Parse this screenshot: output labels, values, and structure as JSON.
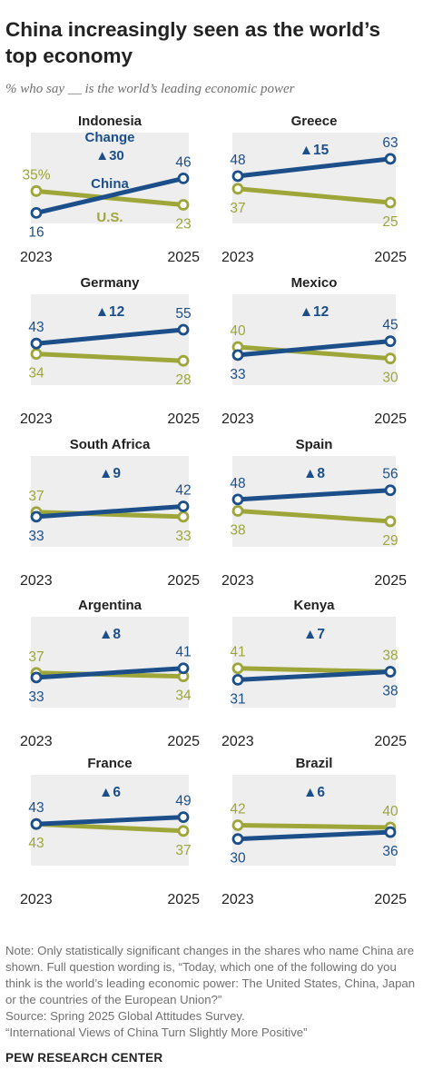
{
  "title": "China increasingly seen as the world’s top economy",
  "subtitle": "% who say __ is the world’s leading economic power",
  "colors": {
    "china": "#1c4f8a",
    "us": "#9ea63a",
    "panel": "#eeeeee",
    "change": "#1c4f8a"
  },
  "chart_data": {
    "type": "line",
    "x": [
      "2023",
      "2025"
    ],
    "key": {
      "change_label": "Change",
      "china_label": "China",
      "us_label": "U.S."
    },
    "panels": [
      {
        "country": "Indonesia",
        "china": [
          16,
          46
        ],
        "us": [
          35,
          23
        ],
        "change": "▲30",
        "us_first_label": "35%",
        "has_key": true
      },
      {
        "country": "Greece",
        "china": [
          48,
          63
        ],
        "us": [
          37,
          25
        ],
        "change": "▲15"
      },
      {
        "country": "Germany",
        "china": [
          43,
          55
        ],
        "us": [
          34,
          28
        ],
        "change": "▲12"
      },
      {
        "country": "Mexico",
        "china": [
          33,
          45
        ],
        "us": [
          40,
          30
        ],
        "change": "▲12"
      },
      {
        "country": "South Africa",
        "china": [
          33,
          42
        ],
        "us": [
          37,
          33
        ],
        "change": "▲9"
      },
      {
        "country": "Spain",
        "china": [
          48,
          56
        ],
        "us": [
          38,
          29
        ],
        "change": "▲8"
      },
      {
        "country": "Argentina",
        "china": [
          33,
          41
        ],
        "us": [
          37,
          34
        ],
        "change": "▲8"
      },
      {
        "country": "Kenya",
        "china": [
          31,
          38
        ],
        "us": [
          41,
          38
        ],
        "change": "▲7"
      },
      {
        "country": "France",
        "china": [
          43,
          49
        ],
        "us": [
          43,
          37
        ],
        "change": "▲6"
      },
      {
        "country": "Brazil",
        "china": [
          30,
          36
        ],
        "us": [
          42,
          40
        ],
        "change": "▲6"
      }
    ]
  },
  "notes": [
    "Note: Only statistically significant changes in the shares who name China are shown. Full question wording is, “Today, which one of the following do you think is the world’s leading economic power: The United States, China, Japan or the countries of the European Union?”",
    "Source: Spring 2025 Global Attitudes Survey.",
    "“International Views of China Turn Slightly More Positive”"
  ],
  "source_label": "PEW RESEARCH CENTER"
}
